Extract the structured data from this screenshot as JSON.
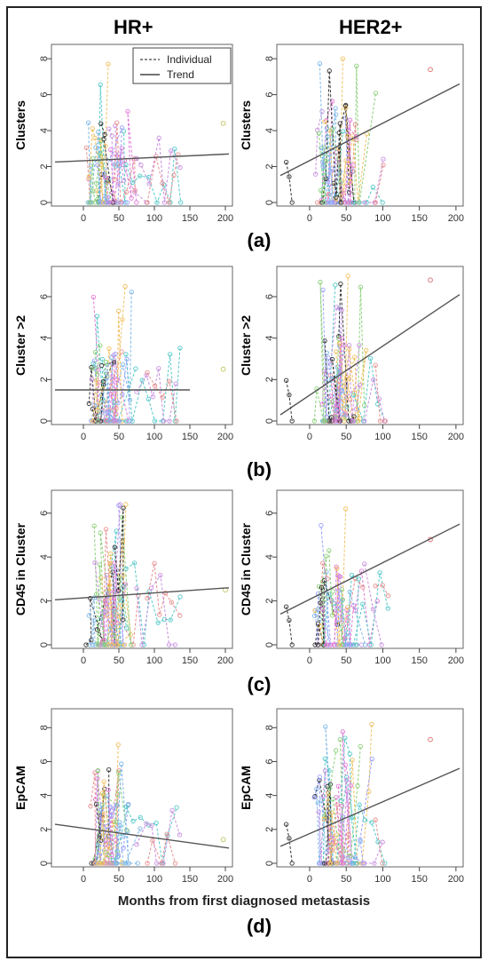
{
  "column_titles": [
    "HR+",
    "HER2+"
  ],
  "legend": {
    "individual": "Individual",
    "trend": "Trend"
  },
  "panel_labels": [
    "(a)",
    "(b)",
    "(c)",
    "(d)"
  ],
  "x_axis_title": "Months from first diagnosed metastasis",
  "colors": {
    "trend": "#555555",
    "series": [
      "#7fb8e8",
      "#e07ad6",
      "#8bd07a",
      "#f0c060",
      "#55c8c8",
      "#c890e0",
      "#e89090",
      "#9aa0ff",
      "#333333"
    ]
  },
  "chart_data": [
    {
      "type": "line",
      "panel": "a",
      "group": "HR+",
      "ylabel": "Clusters",
      "xlim": [
        -40,
        205
      ],
      "ylim": [
        0,
        8.5
      ],
      "xticks": [
        0,
        50,
        100,
        150,
        200
      ],
      "yticks": [
        0,
        2,
        4,
        6,
        8
      ],
      "trend": {
        "x": [
          -40,
          205
        ],
        "y": [
          2.25,
          2.7
        ]
      },
      "max_y": 7.7,
      "max_x": 197,
      "outlier": [
        197,
        4.4
      ]
    },
    {
      "type": "line",
      "panel": "a",
      "group": "HER2+",
      "ylabel": "Clusters",
      "xlim": [
        -40,
        205
      ],
      "ylim": [
        0,
        8.5
      ],
      "xticks": [
        0,
        50,
        100,
        150,
        200
      ],
      "yticks": [
        0,
        2,
        4,
        6,
        8
      ],
      "trend": {
        "x": [
          -40,
          205
        ],
        "y": [
          1.5,
          6.6
        ]
      },
      "max_y": 8.0,
      "max_x": 165,
      "outlier": [
        165,
        7.4
      ]
    },
    {
      "type": "line",
      "panel": "b",
      "group": "HR+",
      "ylabel": "Cluster >2",
      "xlim": [
        -40,
        205
      ],
      "ylim": [
        0,
        7.2
      ],
      "xticks": [
        0,
        50,
        100,
        150,
        200
      ],
      "yticks": [
        0,
        2,
        4,
        6
      ],
      "trend": {
        "x": [
          -40,
          150
        ],
        "y": [
          1.5,
          1.5
        ]
      },
      "max_y": 6.5,
      "max_x": 197,
      "outlier": [
        197,
        2.5
      ]
    },
    {
      "type": "line",
      "panel": "b",
      "group": "HER2+",
      "ylabel": "Cluster >2",
      "xlim": [
        -40,
        205
      ],
      "ylim": [
        0,
        7.2
      ],
      "xticks": [
        0,
        50,
        100,
        150,
        200
      ],
      "yticks": [
        0,
        2,
        4,
        6
      ],
      "trend": {
        "x": [
          -40,
          205
        ],
        "y": [
          0.3,
          6.1
        ]
      },
      "max_y": 7.0,
      "max_x": 165,
      "outlier": [
        165,
        6.8
      ]
    },
    {
      "type": "line",
      "panel": "c",
      "group": "HR+",
      "ylabel": "CD45 in Cluster",
      "xlim": [
        -40,
        205
      ],
      "ylim": [
        0,
        6.8
      ],
      "xticks": [
        0,
        50,
        100,
        150,
        200
      ],
      "yticks": [
        0,
        2,
        4,
        6
      ],
      "trend": {
        "x": [
          -40,
          205
        ],
        "y": [
          2.05,
          2.6
        ]
      },
      "max_y": 6.4,
      "max_x": 200,
      "outlier": [
        200,
        2.5
      ]
    },
    {
      "type": "line",
      "panel": "c",
      "group": "HER2+",
      "ylabel": "CD45 in Cluster",
      "xlim": [
        -40,
        205
      ],
      "ylim": [
        0,
        6.8
      ],
      "xticks": [
        0,
        50,
        100,
        150,
        200
      ],
      "yticks": [
        0,
        2,
        4,
        6
      ],
      "trend": {
        "x": [
          -40,
          205
        ],
        "y": [
          1.4,
          5.5
        ]
      },
      "max_y": 6.2,
      "max_x": 165,
      "outlier": [
        165,
        4.8
      ]
    },
    {
      "type": "line",
      "panel": "d",
      "group": "HR+",
      "ylabel": "EpCAM",
      "xlim": [
        -40,
        205
      ],
      "ylim": [
        0,
        8.8
      ],
      "xticks": [
        0,
        50,
        100,
        150,
        200
      ],
      "yticks": [
        0,
        2,
        4,
        6,
        8
      ],
      "trend": {
        "x": [
          -40,
          205
        ],
        "y": [
          2.3,
          0.9
        ]
      },
      "max_y": 7.0,
      "max_x": 197,
      "outlier": [
        197,
        1.4
      ]
    },
    {
      "type": "line",
      "panel": "d",
      "group": "HER2+",
      "ylabel": "EpCAM",
      "xlim": [
        -40,
        205
      ],
      "ylim": [
        0,
        8.8
      ],
      "xticks": [
        0,
        50,
        100,
        150,
        200
      ],
      "yticks": [
        0,
        2,
        4,
        6,
        8
      ],
      "trend": {
        "x": [
          -40,
          205
        ],
        "y": [
          1.0,
          5.6
        ]
      },
      "max_y": 8.2,
      "max_x": 165,
      "outlier": [
        165,
        7.3
      ]
    }
  ]
}
